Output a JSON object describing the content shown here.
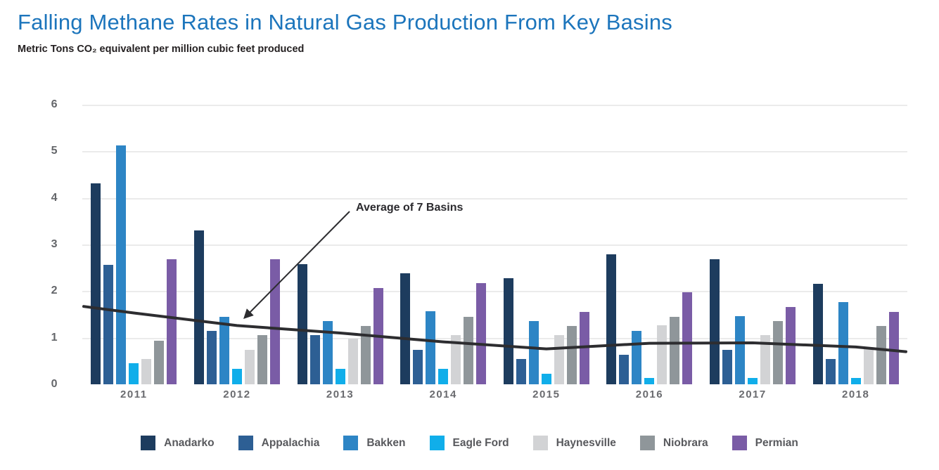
{
  "header": {
    "title": "Falling Methane Rates in Natural Gas Production From Key Basins",
    "subtitle": "Metric Tons CO₂ equivalent per million cubic feet produced"
  },
  "colors": {
    "title_blue": "#1c75bc",
    "axis_text": "#64666a",
    "gridline": "#ebebeb",
    "average_line": "#2d2d30"
  },
  "chart_data": {
    "type": "bar",
    "title": "Falling Methane Rates in Natural Gas Production From Key Basins",
    "ylabel": "Metric Tons CO₂ equivalent per million cubic feet produced",
    "xlabel": "",
    "categories": [
      "2011",
      "2012",
      "2013",
      "2014",
      "2015",
      "2016",
      "2017",
      "2018"
    ],
    "series": [
      {
        "name": "Anadarko",
        "color": "#1d3c5e",
        "values": [
          4.31,
          3.3,
          2.58,
          2.38,
          2.27,
          2.79,
          2.68,
          2.16
        ]
      },
      {
        "name": "Appalachia",
        "color": "#2d5f94",
        "values": [
          2.57,
          1.14,
          1.05,
          0.74,
          0.55,
          0.63,
          0.74,
          0.54
        ]
      },
      {
        "name": "Bakken",
        "color": "#2d85c5",
        "values": [
          5.13,
          1.45,
          1.36,
          1.57,
          1.36,
          1.15,
          1.46,
          1.77
        ]
      },
      {
        "name": "Eagle Ford",
        "color": "#10aeea",
        "values": [
          0.45,
          0.33,
          0.33,
          0.33,
          0.22,
          0.13,
          0.13,
          0.13
        ]
      },
      {
        "name": "Haynesville",
        "color": "#d2d3d5",
        "values": [
          0.55,
          0.74,
          0.98,
          1.05,
          1.05,
          1.26,
          1.05,
          0.8
        ]
      },
      {
        "name": "Niobrara",
        "color": "#8f969a",
        "values": [
          0.94,
          1.05,
          1.25,
          1.45,
          1.25,
          1.45,
          1.35,
          1.25
        ]
      },
      {
        "name": "Permian",
        "color": "#7a5ca6",
        "values": [
          2.68,
          2.68,
          2.06,
          2.17,
          1.56,
          1.97,
          1.66,
          1.56
        ]
      }
    ],
    "average_line": {
      "label": "Average of 7 Basins",
      "color": "#2d2d30",
      "edge_start": 1.67,
      "values": [
        1.53,
        1.26,
        1.1,
        0.91,
        0.76,
        0.88,
        0.89,
        0.8
      ],
      "edge_end": 0.7
    },
    "ylim": [
      0,
      6
    ],
    "yticks": [
      0,
      1,
      2,
      3,
      4,
      5,
      6
    ],
    "grid": "horizontal",
    "legend_position": "bottom"
  }
}
